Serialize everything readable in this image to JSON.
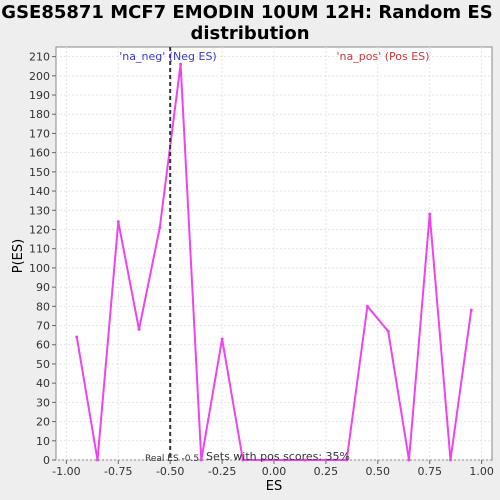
{
  "chart_data": {
    "type": "line",
    "title_line1": "GSE85871 MCF7 EMODIN 10UM 12H: Random ES",
    "title_line2": "distribution",
    "xlabel": "ES",
    "ylabel": "P(ES)",
    "xlim": [
      -1.05,
      1.05
    ],
    "ylim": [
      0,
      215
    ],
    "x_ticks": [
      "-1.00",
      "-0.75",
      "-0.50",
      "-0.25",
      "0.00",
      "0.25",
      "0.50",
      "0.75",
      "1.00"
    ],
    "y_ticks": [
      "0",
      "10",
      "20",
      "30",
      "40",
      "50",
      "60",
      "70",
      "80",
      "90",
      "100",
      "110",
      "120",
      "130",
      "140",
      "150",
      "160",
      "170",
      "180",
      "190",
      "200",
      "210"
    ],
    "grid": true,
    "line_color": "#ee44ee",
    "x": [
      -0.95,
      -0.85,
      -0.75,
      -0.65,
      -0.55,
      -0.45,
      -0.35,
      -0.25,
      -0.15,
      -0.05,
      0.05,
      0.15,
      0.25,
      0.35,
      0.45,
      0.55,
      0.65,
      0.75,
      0.85,
      0.95
    ],
    "y": [
      64,
      0,
      124,
      68,
      121,
      206,
      0,
      63,
      0,
      0,
      0,
      0,
      0,
      0,
      80,
      67,
      0,
      128,
      0,
      78
    ],
    "real_es": -0.5,
    "annotations": {
      "neg": "'na_neg' (Neg ES)",
      "pos": "'na_pos' (Pos ES)",
      "real_es": "Real ES -0.5",
      "pos_fraction": "Sets with pos scores: 35%"
    }
  }
}
